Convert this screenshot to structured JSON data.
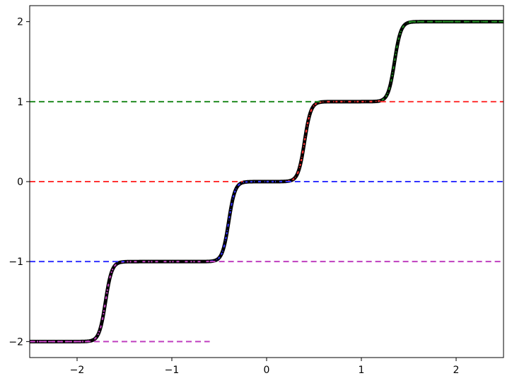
{
  "chart_data": {
    "type": "line",
    "title": "",
    "xlabel": "",
    "ylabel": "",
    "xlim": [
      -2.5,
      2.5
    ],
    "ylim": [
      -2.2,
      2.2
    ],
    "xticks": [
      -2,
      -1,
      0,
      1,
      2
    ],
    "yticks": [
      -2,
      -1,
      0,
      1,
      2
    ],
    "xtick_labels": [
      "−2",
      "−1",
      "0",
      "1",
      "2"
    ],
    "ytick_labels": [
      "−2",
      "−1",
      "0",
      "1",
      "2"
    ],
    "grid": false,
    "legend": "none",
    "staircase": {
      "color": "#000000",
      "style": "solid with dotted overlay",
      "step_centers": [
        -1.7,
        -0.4,
        0.4,
        1.35
      ],
      "step_halfwidth": 0.175,
      "levels": [
        -2,
        -1,
        0,
        1,
        2
      ]
    },
    "series": [
      {
        "color": "#bf3fbf",
        "style": "dashed",
        "x": [
          -2.5,
          -0.6
        ],
        "y": [
          -2,
          -2
        ],
        "note_segment": "low"
      },
      {
        "color": "#bf3fbf",
        "style": "dashed",
        "x": [
          -0.6,
          2.5
        ],
        "y": [
          -1,
          -1
        ]
      },
      {
        "color": "#3333ff",
        "style": "dashed",
        "x": [
          -2.5,
          -1.5
        ],
        "y": [
          -1,
          -1
        ]
      },
      {
        "color": "#3333ff",
        "style": "dashed",
        "x": [
          0.2,
          2.5
        ],
        "y": [
          0,
          0
        ]
      },
      {
        "color": "#ff3333",
        "style": "dashed",
        "x": [
          -2.5,
          -0.25
        ],
        "y": [
          0,
          0
        ]
      },
      {
        "color": "#ff3333",
        "style": "dashed",
        "x": [
          1.2,
          2.5
        ],
        "y": [
          1,
          1
        ]
      },
      {
        "color": "#228b22",
        "style": "dashed",
        "x": [
          -2.5,
          0.6
        ],
        "y": [
          1,
          1
        ]
      },
      {
        "color": "#228b22",
        "style": "dashed",
        "x": [
          1.5,
          2.5
        ],
        "y": [
          2,
          2
        ]
      }
    ],
    "overlays": [
      {
        "color": "#bf3fbf",
        "x_range": [
          -2.5,
          -0.6
        ]
      },
      {
        "color": "#3333ff",
        "x_range": [
          -0.6,
          0.2
        ]
      },
      {
        "color": "#ff3333",
        "x_range": [
          0.2,
          1.2
        ]
      },
      {
        "color": "#228b22",
        "x_range": [
          1.2,
          2.5
        ]
      }
    ]
  }
}
